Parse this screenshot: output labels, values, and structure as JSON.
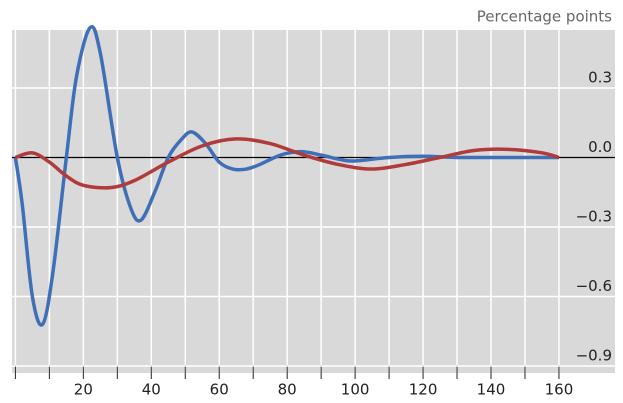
{
  "chart_data": {
    "type": "line",
    "unit_label": "Percentage points",
    "x": [
      0,
      2,
      5,
      8,
      11,
      15,
      18,
      22,
      25,
      30,
      34,
      37,
      41,
      45,
      49,
      52,
      56,
      60,
      64,
      68,
      72,
      78,
      84,
      90,
      96,
      100,
      110,
      120,
      130,
      140,
      150,
      160
    ],
    "series": [
      {
        "color": "#3f6fb6",
        "x": [
          0,
          2,
          5,
          8,
          11,
          15,
          18,
          22,
          25,
          30,
          34,
          37,
          41,
          45,
          49,
          52,
          56,
          60,
          64,
          68,
          72,
          78,
          84,
          90,
          96,
          100,
          110,
          120,
          130,
          140,
          150,
          160
        ],
        "values": [
          0,
          -0.2,
          -0.6,
          -0.72,
          -0.5,
          0,
          0.35,
          0.56,
          0.45,
          0,
          -0.22,
          -0.27,
          -0.15,
          0,
          0.08,
          0.11,
          0.06,
          -0.02,
          -0.05,
          -0.05,
          -0.03,
          0.01,
          0.025,
          0.01,
          -0.01,
          -0.015,
          0,
          0.005,
          0,
          0,
          0,
          0
        ]
      },
      {
        "color": "#b13a3a",
        "x": [
          0,
          5,
          10,
          15,
          20,
          28,
          35,
          45,
          55,
          65,
          75,
          85,
          95,
          105,
          115,
          125,
          135,
          145,
          155,
          160
        ],
        "values": [
          0,
          0.02,
          -0.02,
          -0.08,
          -0.12,
          -0.13,
          -0.1,
          -0.02,
          0.05,
          0.08,
          0.06,
          0.01,
          -0.03,
          -0.05,
          -0.03,
          0,
          0.03,
          0.035,
          0.02,
          0
        ]
      }
    ],
    "xlim": [
      -1,
      176.5
    ],
    "ylim": [
      -0.93,
      0.55
    ],
    "xticks": [
      20,
      40,
      60,
      80,
      100,
      120,
      140,
      160
    ],
    "xgrid": [
      0,
      10,
      20,
      30,
      40,
      50,
      60,
      70,
      80,
      90,
      100,
      110,
      120,
      130,
      140,
      150,
      160
    ],
    "yticks": [
      0.3,
      {
        "value": 0,
        "label": "0.0"
      },
      {
        "value": -0.3,
        "label": "−0.3"
      },
      {
        "value": -0.6,
        "label": "−0.6"
      },
      {
        "value": -0.9,
        "label": "−0.9"
      }
    ],
    "background": "#d9d9d9",
    "grid": true
  }
}
